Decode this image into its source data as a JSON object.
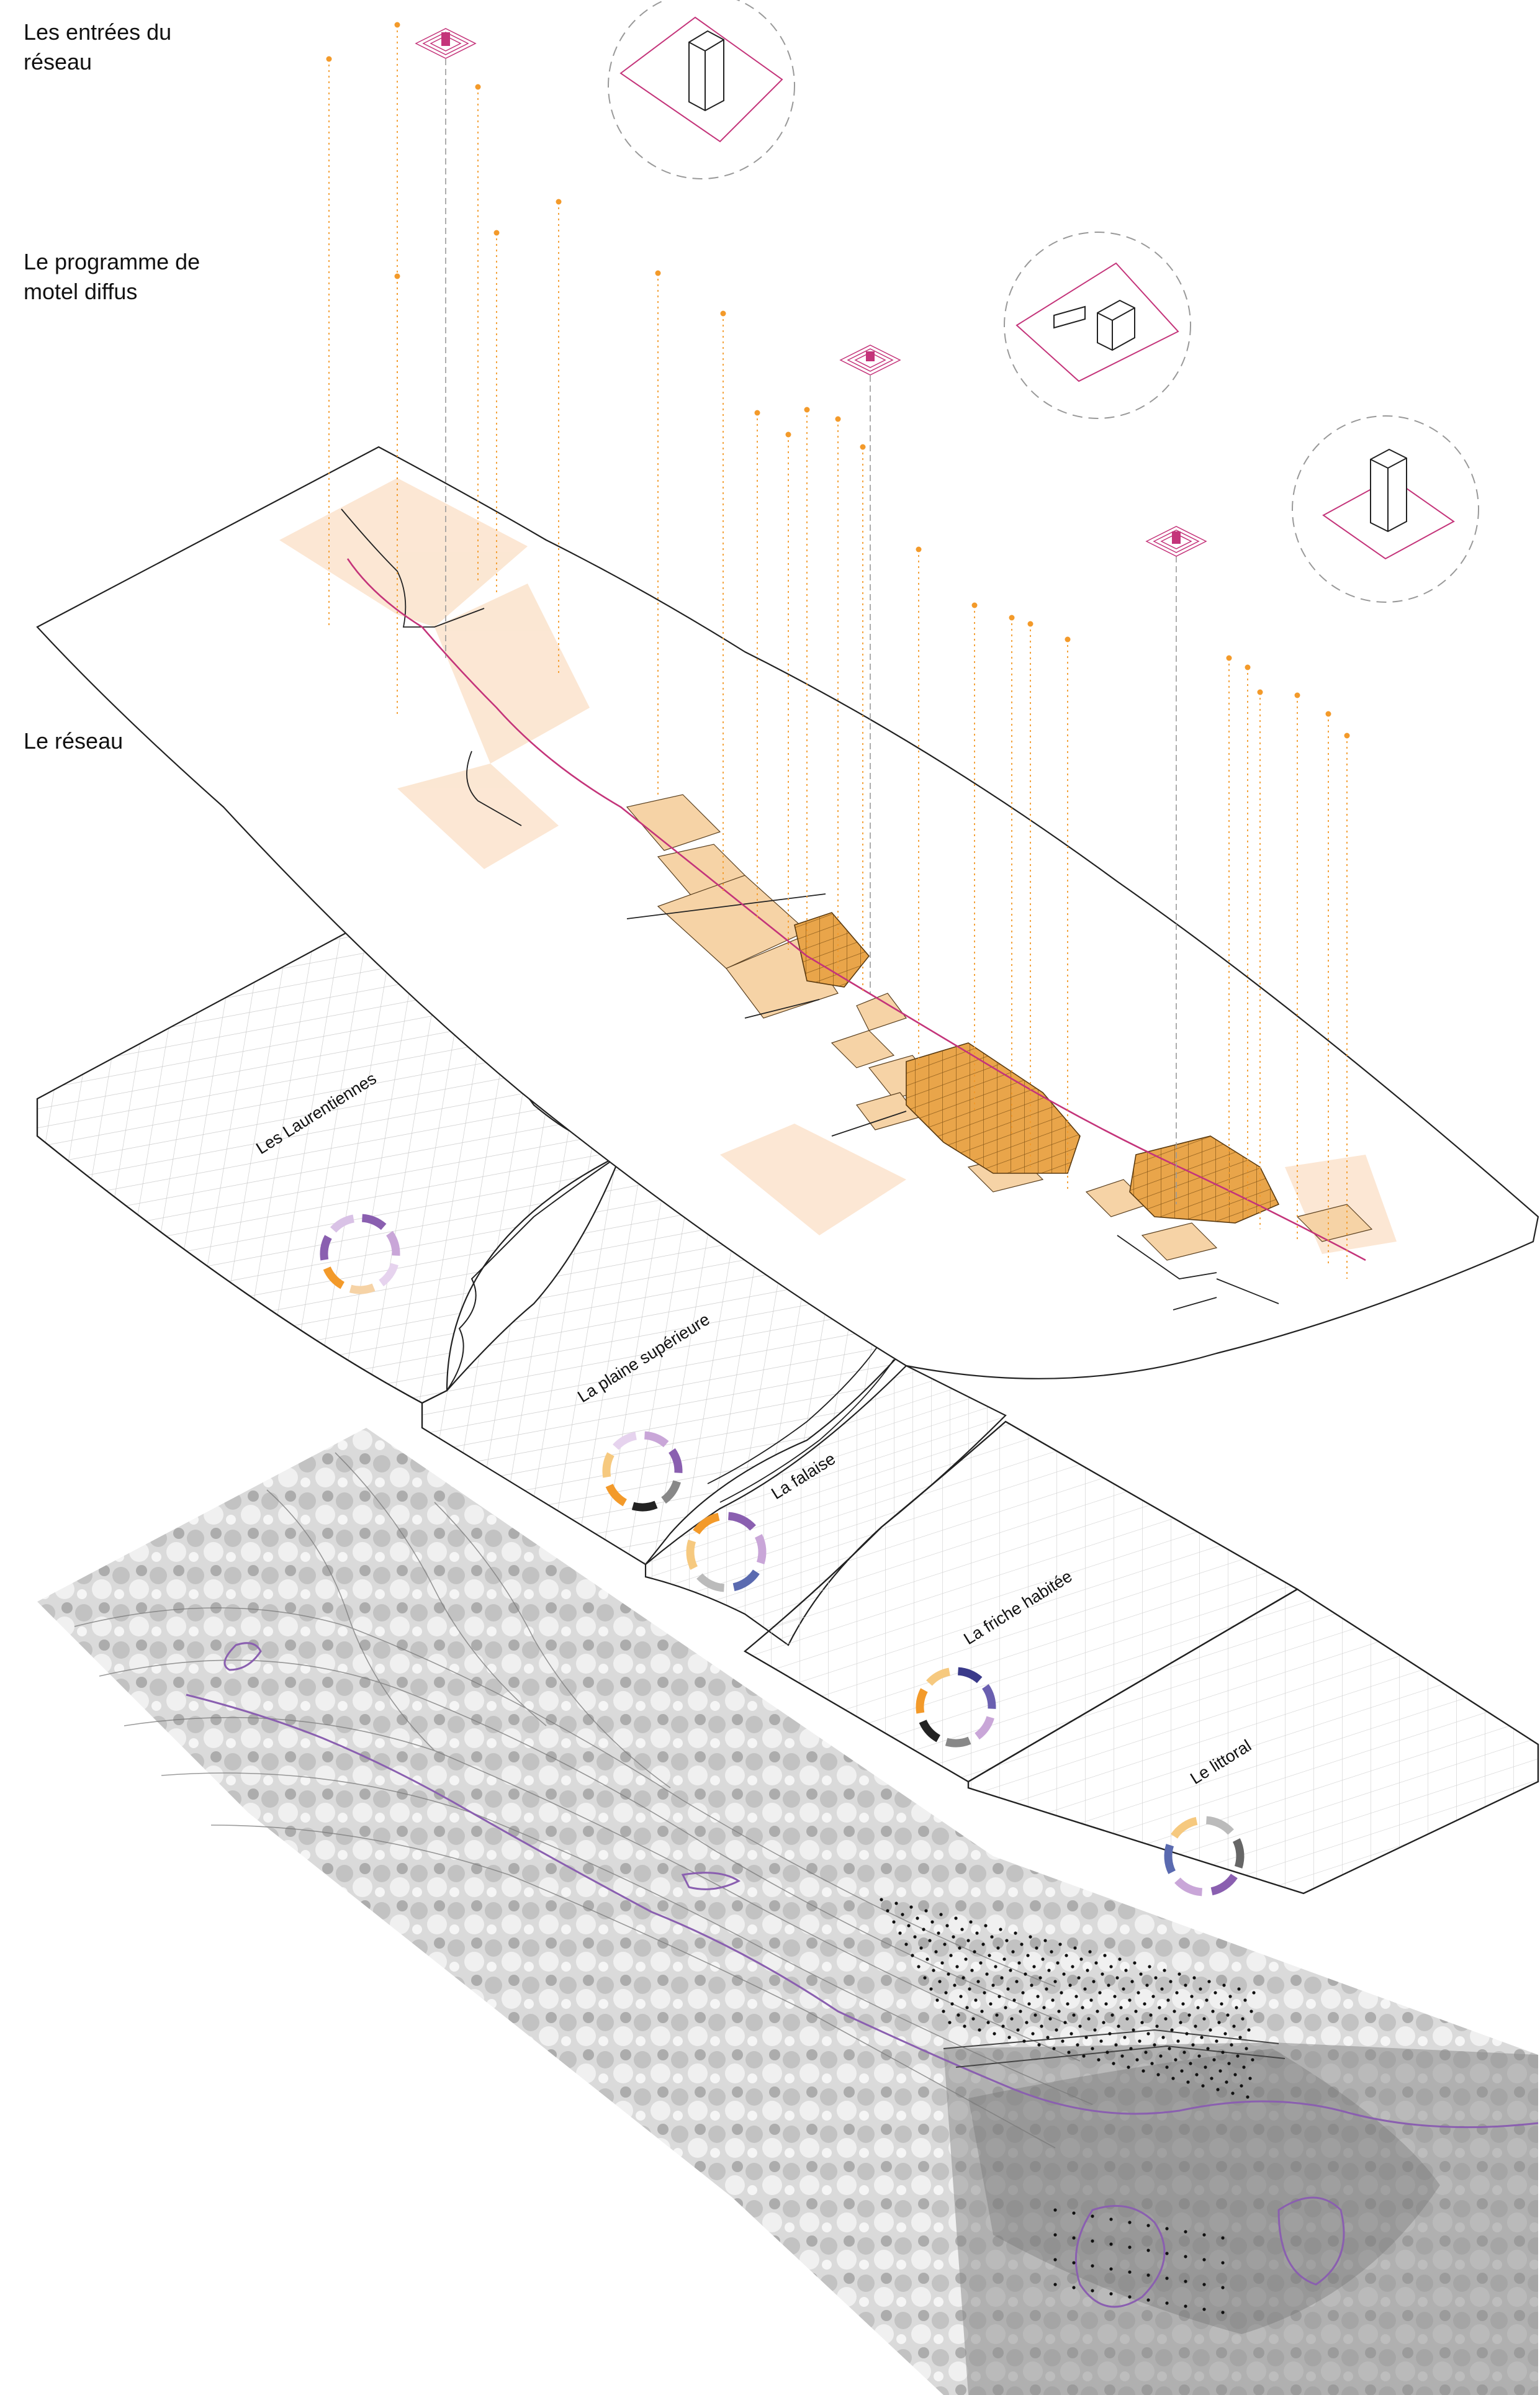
{
  "layers": {
    "entries": "Les entrées du\nréseau",
    "program": "Le programme de\nmotel diffus",
    "network": "Le réseau"
  },
  "regions": [
    {
      "name": "Les Laurentiennes"
    },
    {
      "name": "La plaine supérieure"
    },
    {
      "name": "La falaise"
    },
    {
      "name": "La friche habitée"
    },
    {
      "name": "Le littoral"
    }
  ],
  "colors": {
    "accent_orange": "#f39a2a",
    "grid_fill": "#f6d3a6",
    "grid_dense": "#e8a84a",
    "magenta": "#c4347a",
    "purple": "#8a5fb0",
    "line": "#222222"
  },
  "icons": [
    "building-tower-icon",
    "building-cube-icon",
    "node-marker-icon"
  ]
}
